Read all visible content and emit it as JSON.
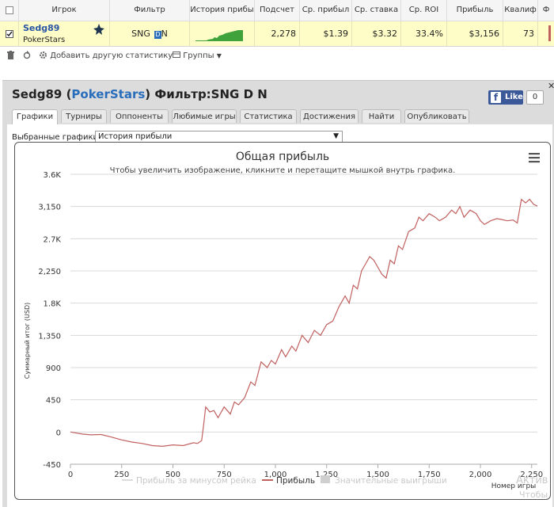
{
  "stats_table": {
    "headers": [
      "Игрок",
      "Фильтр",
      "История прибы",
      "Подсчет",
      "Ср. прибыл",
      "Ср. ставка",
      "Ср. ROI",
      "Прибыль",
      "Квалиф",
      "Ф"
    ],
    "row": {
      "player_name": "Sedg89",
      "site": "PokerStars",
      "filter": "SNG",
      "filter_suffix": "N",
      "count": "2,278",
      "avg_profit": "$1.39",
      "avg_stake": "$3.32",
      "avg_roi": "33.4%",
      "profit": "$3,156",
      "qualifier": "73"
    }
  },
  "toolbar": {
    "add_stat_label": "Добавить другую статистику",
    "groups_label": "Группы"
  },
  "panel": {
    "title_player": "Sedg89",
    "title_site": "PokerStars",
    "title_filter": "Фильтр:SNG D N",
    "like_label": "Like",
    "like_count": "0",
    "tabs": [
      "Графики",
      "Турниры",
      "Оппоненты",
      "Любимые игры",
      "Статистика",
      "Достижения",
      "Найти",
      "Опубликовать"
    ],
    "selected_charts_label": "Выбранные графики:",
    "selected_chart": "История прибыли"
  },
  "chart_data": {
    "type": "line",
    "title": "Общая прибыль",
    "subtitle": "Чтобы увеличить изображение, кликните и перетащите мышкой внутрь графика.",
    "ylabel": "Суммарный итог (USD)",
    "xlabel": "Номер игры",
    "ylim": [
      -450,
      3600
    ],
    "xlim": [
      0,
      2278
    ],
    "yticks": [
      "-450",
      "0",
      "450",
      "900",
      "1,350",
      "1.8K",
      "2,250",
      "2.7K",
      "3,150",
      "3.6K"
    ],
    "ytick_values": [
      -450,
      0,
      450,
      900,
      1350,
      1800,
      2250,
      2700,
      3150,
      3600
    ],
    "xticks": [
      "0",
      "250",
      "500",
      "750",
      "1,000",
      "1,250",
      "1,500",
      "1,750",
      "2,000",
      "2,250"
    ],
    "xtick_values": [
      0,
      250,
      500,
      750,
      1000,
      1250,
      1500,
      1750,
      2000,
      2250
    ],
    "legend": [
      "Прибыль за минусом рейка",
      "Прибыль",
      "Значительные выигрыши"
    ],
    "legend_position": "bottom",
    "grid": true,
    "series": [
      {
        "name": "Прибыль",
        "color": "#c0605f",
        "x": [
          0,
          30,
          60,
          100,
          150,
          200,
          250,
          300,
          350,
          400,
          450,
          500,
          550,
          600,
          620,
          640,
          650,
          660,
          680,
          700,
          720,
          750,
          780,
          800,
          820,
          850,
          880,
          900,
          930,
          960,
          980,
          1000,
          1030,
          1050,
          1080,
          1100,
          1130,
          1160,
          1190,
          1220,
          1250,
          1280,
          1310,
          1340,
          1360,
          1380,
          1400,
          1420,
          1440,
          1460,
          1480,
          1500,
          1520,
          1540,
          1560,
          1580,
          1600,
          1620,
          1650,
          1680,
          1700,
          1720,
          1750,
          1780,
          1800,
          1830,
          1860,
          1880,
          1900,
          1920,
          1950,
          1980,
          2000,
          2020,
          2050,
          2080,
          2100,
          2130,
          2160,
          2180,
          2200,
          2220,
          2240,
          2260,
          2278
        ],
        "y": [
          0,
          -15,
          -30,
          -40,
          -35,
          -70,
          -110,
          -140,
          -160,
          -190,
          -200,
          -180,
          -190,
          -150,
          -160,
          -120,
          100,
          350,
          280,
          300,
          200,
          350,
          250,
          420,
          380,
          480,
          700,
          650,
          980,
          900,
          1000,
          950,
          1150,
          1050,
          1200,
          1130,
          1350,
          1250,
          1420,
          1350,
          1500,
          1550,
          1750,
          1900,
          1800,
          2050,
          2000,
          2250,
          2350,
          2450,
          2400,
          2300,
          2200,
          2150,
          2400,
          2350,
          2600,
          2550,
          2800,
          2850,
          3000,
          2950,
          3050,
          3000,
          2950,
          3000,
          3100,
          3050,
          3150,
          3000,
          3100,
          3050,
          2950,
          2900,
          2950,
          2980,
          2970,
          2950,
          2960,
          2920,
          3250,
          3200,
          3250,
          3180,
          3156
        ]
      }
    ]
  },
  "watermark": {
    "line1": "Актив",
    "line2": "Чтобы"
  }
}
